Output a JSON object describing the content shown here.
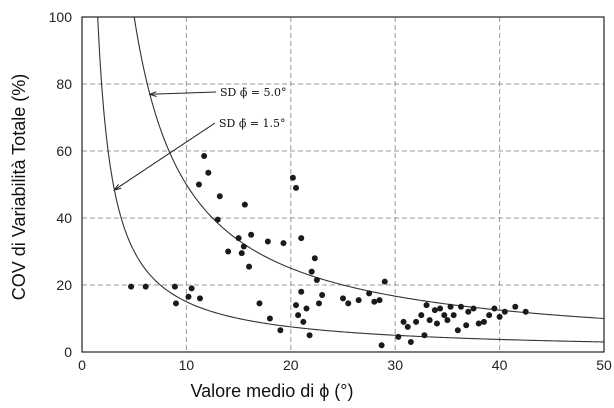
{
  "chart_data": {
    "type": "scatter",
    "xlabel": "Valore medio di ϕ  (°)",
    "ylabel": "COV di Variabilità Totale (%)",
    "xlim": [
      0,
      50
    ],
    "ylim": [
      0,
      100
    ],
    "xticks": [
      "0",
      "10",
      "20",
      "30",
      "40",
      "50"
    ],
    "yticks": [
      "0",
      "20",
      "40",
      "60",
      "80",
      "100"
    ],
    "grid": true,
    "annotations": [
      {
        "text": "SD ϕ̄ = 5.0°",
        "points_to_x": 6.5
      },
      {
        "text": "SD ϕ̄ = 1.5°",
        "points_to_x": 3.1
      }
    ],
    "curves": [
      {
        "label": "SD ϕ̄ = 5.0°",
        "sd": 5.0
      },
      {
        "label": "SD ϕ̄ = 1.5°",
        "sd": 1.5
      }
    ],
    "points": [
      [
        4.7,
        19.5
      ],
      [
        6.1,
        19.5
      ],
      [
        8.9,
        19.5
      ],
      [
        9.0,
        14.5
      ],
      [
        10.2,
        16.5
      ],
      [
        11.3,
        16.0
      ],
      [
        10.5,
        19.0
      ],
      [
        11.2,
        50.0
      ],
      [
        11.7,
        58.5
      ],
      [
        12.1,
        53.5
      ],
      [
        13.0,
        39.5
      ],
      [
        13.2,
        46.5
      ],
      [
        14.0,
        30.0
      ],
      [
        15.0,
        34.0
      ],
      [
        15.3,
        29.5
      ],
      [
        15.5,
        31.5
      ],
      [
        16.0,
        25.5
      ],
      [
        15.6,
        44.0
      ],
      [
        16.2,
        35.0
      ],
      [
        17.0,
        14.5
      ],
      [
        18.0,
        10.0
      ],
      [
        17.8,
        33.0
      ],
      [
        19.3,
        32.5
      ],
      [
        19.0,
        6.5
      ],
      [
        20.2,
        52.0
      ],
      [
        20.5,
        49.0
      ],
      [
        20.5,
        14.0
      ],
      [
        20.7,
        11.0
      ],
      [
        21.0,
        34.0
      ],
      [
        21.0,
        18.0
      ],
      [
        21.2,
        9.0
      ],
      [
        21.5,
        13.0
      ],
      [
        21.8,
        5.0
      ],
      [
        22.0,
        24.0
      ],
      [
        22.3,
        28.0
      ],
      [
        22.5,
        21.5
      ],
      [
        22.7,
        14.5
      ],
      [
        23.0,
        17.0
      ],
      [
        25.0,
        16.0
      ],
      [
        25.5,
        14.5
      ],
      [
        26.5,
        15.5
      ],
      [
        27.5,
        17.5
      ],
      [
        28.0,
        15.0
      ],
      [
        28.5,
        15.5
      ],
      [
        29.0,
        21.0
      ],
      [
        28.7,
        2.0
      ],
      [
        30.3,
        4.5
      ],
      [
        30.8,
        9.0
      ],
      [
        31.2,
        7.5
      ],
      [
        31.5,
        3.0
      ],
      [
        32.0,
        9.0
      ],
      [
        32.5,
        11.0
      ],
      [
        32.8,
        5.0
      ],
      [
        33.0,
        14.0
      ],
      [
        33.3,
        9.5
      ],
      [
        33.8,
        12.5
      ],
      [
        34.0,
        8.5
      ],
      [
        34.3,
        13.0
      ],
      [
        34.7,
        11.0
      ],
      [
        35.0,
        9.5
      ],
      [
        35.3,
        13.5
      ],
      [
        35.6,
        11.0
      ],
      [
        36.0,
        6.5
      ],
      [
        36.3,
        13.5
      ],
      [
        36.8,
        8.0
      ],
      [
        37.0,
        12.0
      ],
      [
        37.5,
        13.0
      ],
      [
        38.0,
        8.5
      ],
      [
        38.5,
        9.0
      ],
      [
        39.0,
        11.0
      ],
      [
        39.5,
        13.0
      ],
      [
        40.0,
        10.5
      ],
      [
        40.5,
        12.0
      ],
      [
        41.5,
        13.5
      ],
      [
        42.5,
        12.0
      ]
    ]
  }
}
